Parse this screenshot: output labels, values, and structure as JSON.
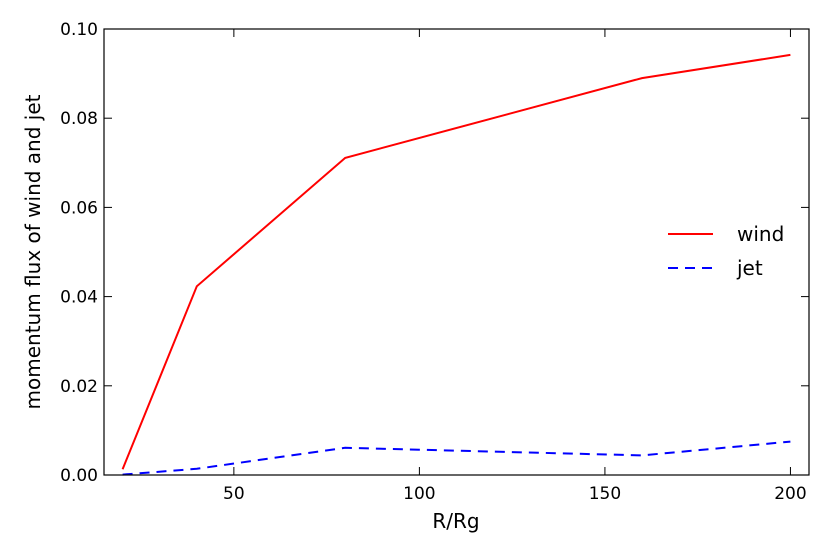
{
  "chart_data": {
    "type": "line",
    "xlabel": "R/Rg",
    "ylabel": "momentum flux of wind and jet",
    "xlim": [
      15,
      205
    ],
    "ylim": [
      0.0,
      0.1
    ],
    "xticks": [
      50,
      100,
      150,
      200
    ],
    "yticks": [
      0.0,
      0.02,
      0.04,
      0.06,
      0.08,
      0.1
    ],
    "xtick_labels": [
      "50",
      "100",
      "150",
      "200"
    ],
    "ytick_labels": [
      "0.00",
      "0.02",
      "0.04",
      "0.06",
      "0.08",
      "0.10"
    ],
    "grid": false,
    "legend_position": "right",
    "series": [
      {
        "name": "wind",
        "color": "#ff0000",
        "style": "solid",
        "x": [
          20,
          40,
          80,
          160,
          200
        ],
        "y": [
          0.0013,
          0.0423,
          0.0711,
          0.089,
          0.0942
        ]
      },
      {
        "name": "jet",
        "color": "#0000ff",
        "style": "dashed",
        "x": [
          20,
          40,
          80,
          160,
          200
        ],
        "y": [
          0.0001,
          0.0014,
          0.0061,
          0.0044,
          0.0075
        ]
      }
    ]
  }
}
